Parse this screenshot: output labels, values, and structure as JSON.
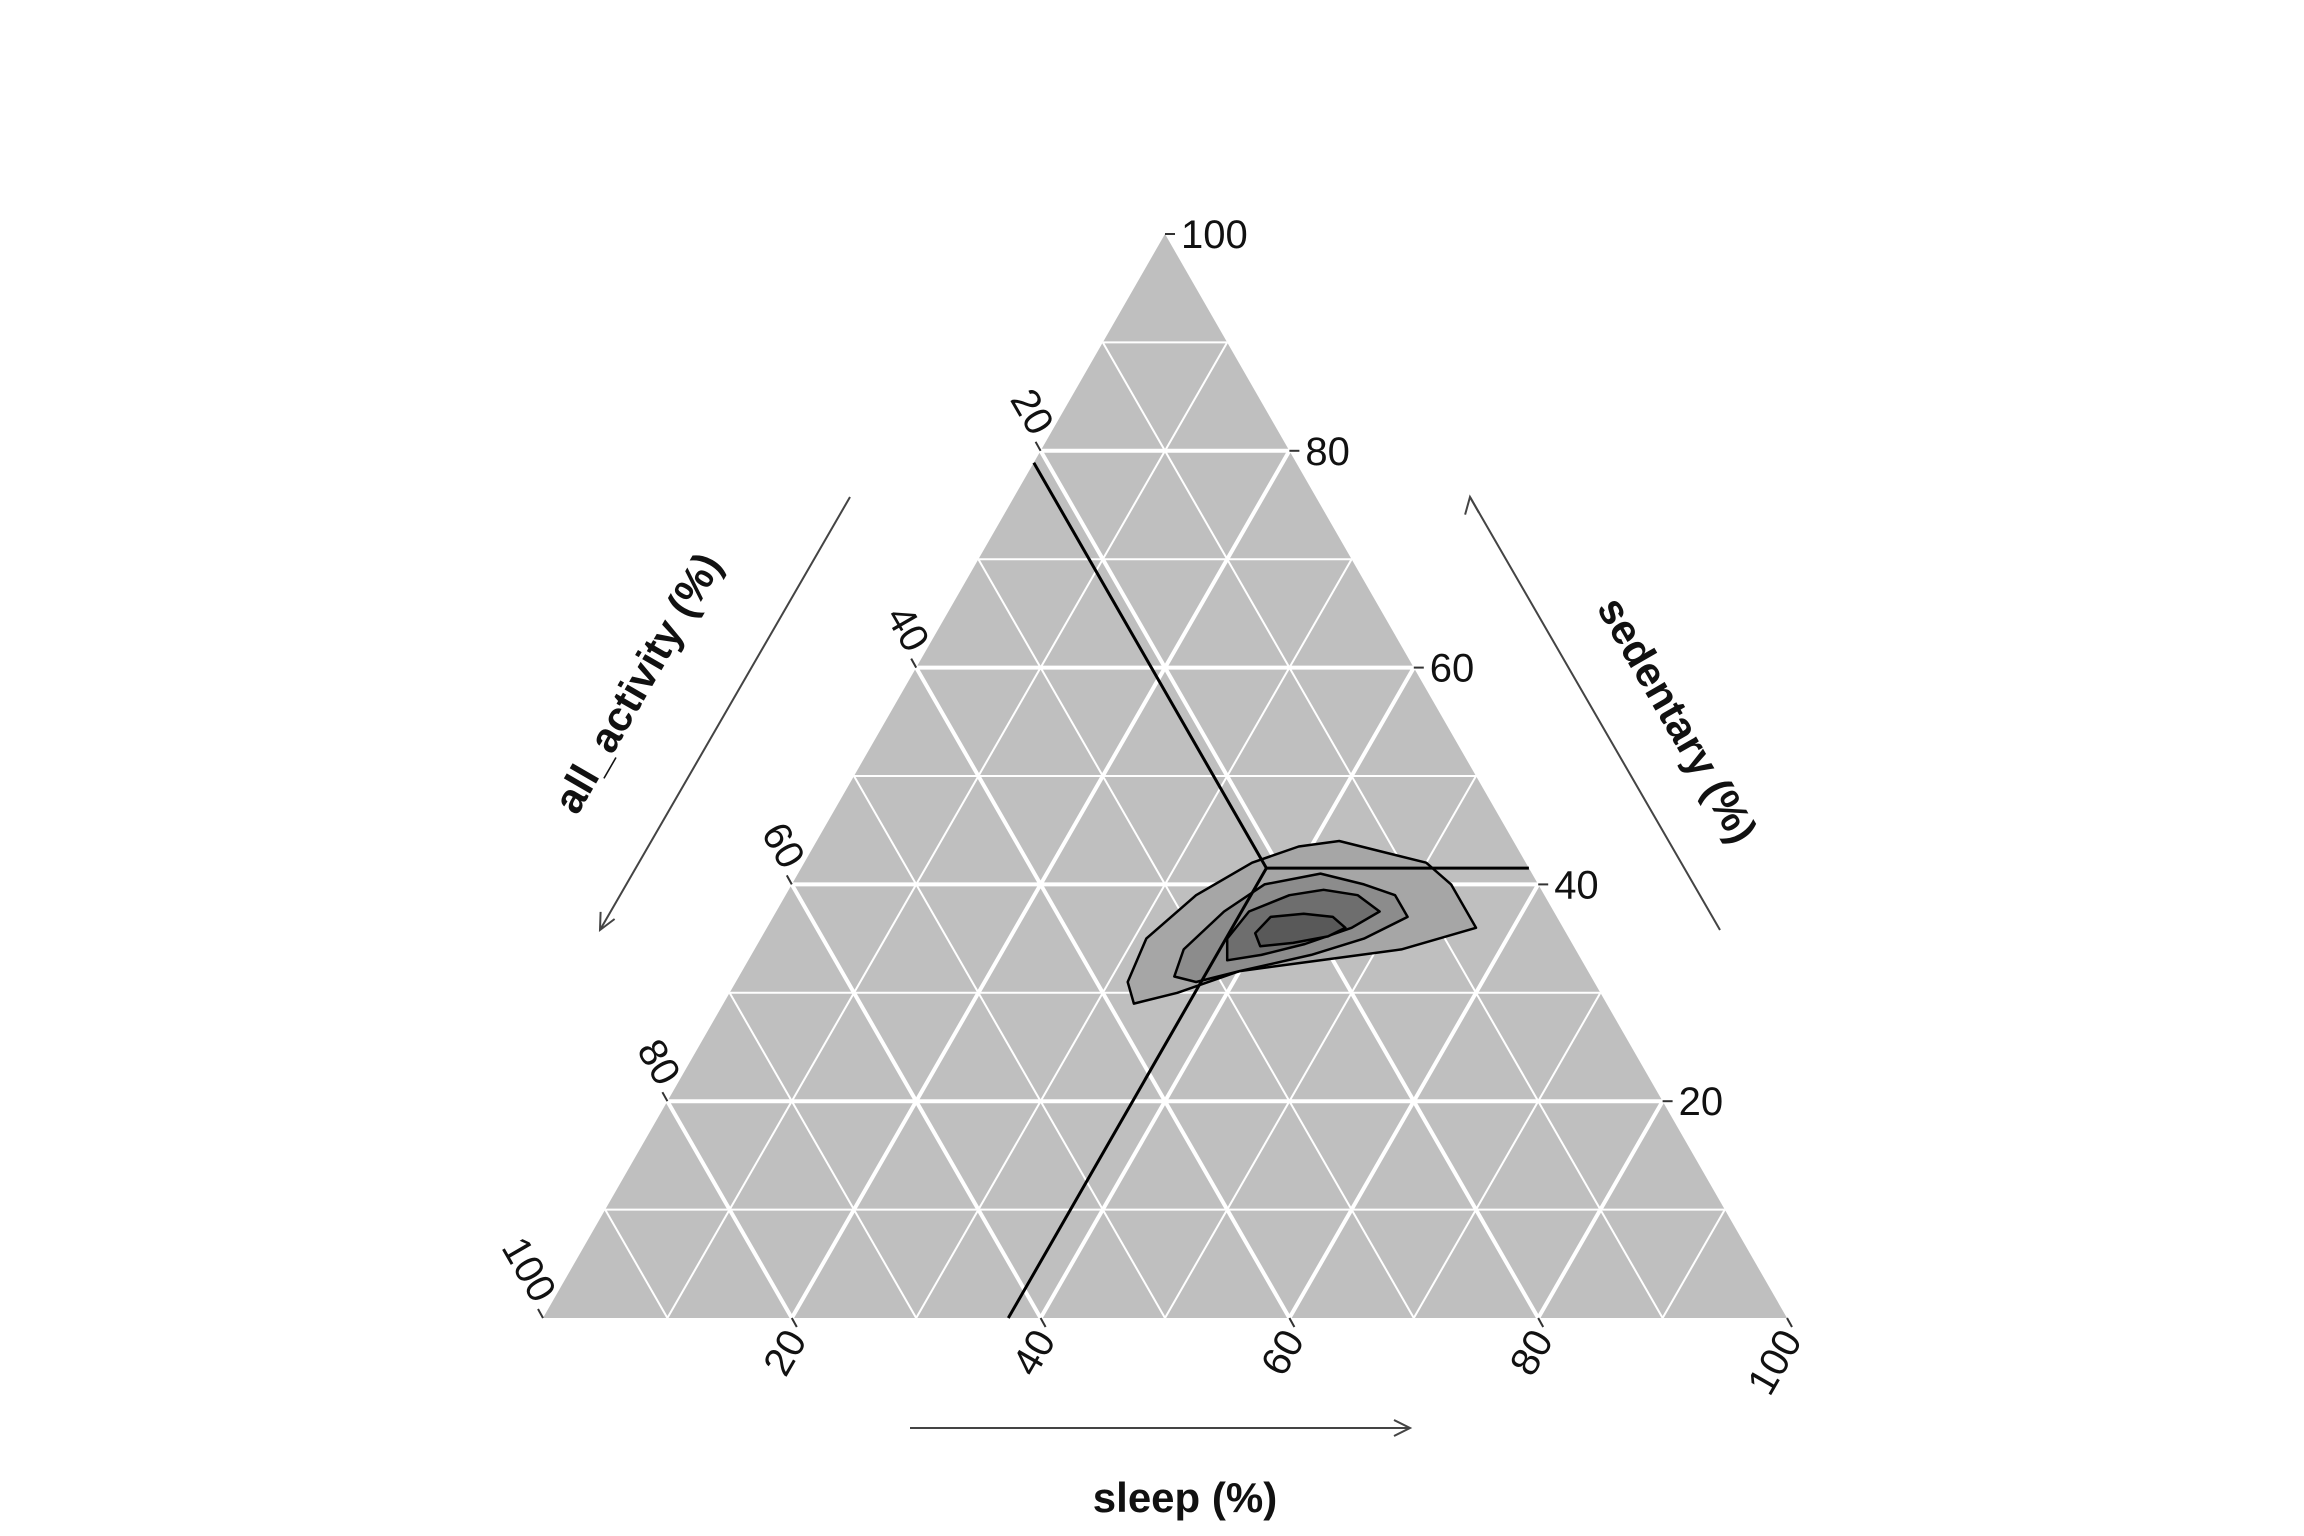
{
  "chart_data": {
    "type": "ternary-density",
    "axes": {
      "sedentary": {
        "label": "sedentary (%)",
        "ticks": [
          "20",
          "40",
          "60",
          "80",
          "100"
        ]
      },
      "sleep": {
        "label": "sleep (%)",
        "ticks": [
          "20",
          "40",
          "60",
          "80",
          "100"
        ]
      },
      "all_activity": {
        "label": "all_activity (%)",
        "ticks": [
          "20",
          "40",
          "60",
          "80",
          "100"
        ]
      }
    },
    "range": [
      0,
      100
    ],
    "grid": {
      "major_step": 20,
      "minor_step": 10,
      "on": true
    },
    "colors": {
      "background": "#bfbfbf",
      "grid": "#ffffff",
      "contour_stroke": "#000000"
    },
    "mean": {
      "sedentary": 41.5,
      "sleep": 37.4,
      "all_activity": 21.1
    },
    "density_levels": [
      {
        "level": 1,
        "fill": "#a6a6a6",
        "opacity": 1,
        "points": [
          [
            36,
            57
          ],
          [
            40,
            53
          ],
          [
            42,
            50
          ],
          [
            43,
            46
          ],
          [
            44,
            42
          ],
          [
            43.5,
            39
          ],
          [
            42,
            36
          ],
          [
            39,
            33
          ],
          [
            35,
            31
          ],
          [
            31,
            31.5
          ],
          [
            29,
            33
          ],
          [
            30,
            36
          ],
          [
            32,
            40
          ],
          [
            33,
            46
          ],
          [
            34,
            52
          ]
        ]
      },
      {
        "level": 2,
        "fill": "#8c8c8c",
        "opacity": 1,
        "points": [
          [
            37,
            51
          ],
          [
            39,
            49
          ],
          [
            40,
            46
          ],
          [
            41,
            42
          ],
          [
            40,
            38
          ],
          [
            37.5,
            36
          ],
          [
            34,
            34.5
          ],
          [
            31.5,
            35
          ],
          [
            31,
            37
          ],
          [
            32,
            40
          ],
          [
            33.5,
            45
          ],
          [
            35,
            48.5
          ]
        ]
      },
      {
        "level": 3,
        "fill": "#6e6e6e",
        "opacity": 1,
        "points": [
          [
            37.5,
            48.5
          ],
          [
            39,
            46
          ],
          [
            39.5,
            43
          ],
          [
            39,
            40.5
          ],
          [
            37.5,
            38
          ],
          [
            35,
            37.5
          ],
          [
            33,
            38.5
          ],
          [
            33.5,
            41
          ],
          [
            34.5,
            44
          ],
          [
            36,
            47
          ]
        ]
      },
      {
        "level": 4,
        "fill": "#595959",
        "opacity": 1,
        "points": [
          [
            36,
            46.5
          ],
          [
            37,
            45
          ],
          [
            37.3,
            42.5
          ],
          [
            37,
            40
          ],
          [
            35.5,
            39.5
          ],
          [
            34.3,
            40.5
          ],
          [
            34.6,
            43
          ],
          [
            35.2,
            45.5
          ]
        ]
      }
    ]
  }
}
